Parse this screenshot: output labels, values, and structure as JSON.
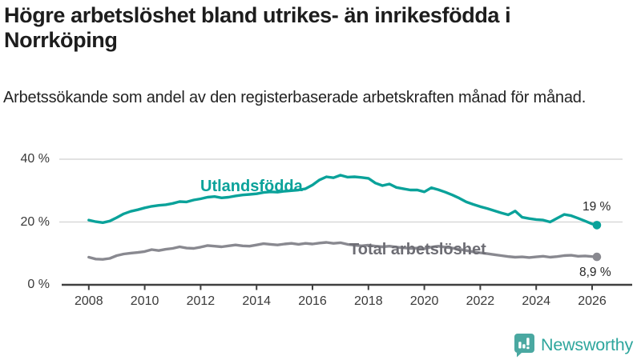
{
  "header": {
    "title": "Högre arbetslöshet bland utrikes- än inrikesfödda i Norrköping",
    "subtitle": "Arbetssökande som andel av den registerbaserade arbetskraften månad för månad."
  },
  "footer": {
    "brand": "Newsworthy"
  },
  "colors": {
    "accent_teal": "#0aa29a",
    "series_gray": "#898990",
    "series_label_gray": "#6d6d74",
    "logo_teal": "#2ea69d",
    "logo_icon_teal": "#4aa8a1",
    "text_dark": "#1d1d1d",
    "axis": "#3f3f3f",
    "grid": "#d8d8d8",
    "value_label": "#262626"
  },
  "chart_data": {
    "type": "line",
    "title": "Högre arbetslöshet bland utrikes- än inrikesfödda i Norrköping",
    "subtitle": "Arbetssökande som andel av den registerbaserade arbetskraften månad för månad.",
    "unit": "%",
    "ylim": [
      0,
      40
    ],
    "grid": "horizontal-only",
    "legend_position": "inline-labels",
    "xticks": [
      2008,
      2010,
      2012,
      2014,
      2016,
      2018,
      2020,
      2022,
      2024,
      2026
    ],
    "yticks": [
      {
        "value": 0,
        "label": "0 %"
      },
      {
        "value": 20,
        "label": "20 %"
      },
      {
        "value": 40,
        "label": "40 %"
      }
    ],
    "x": [
      2008,
      2008.25,
      2008.5,
      2008.75,
      2009,
      2009.25,
      2009.5,
      2009.75,
      2010,
      2010.25,
      2010.5,
      2010.75,
      2011,
      2011.25,
      2011.5,
      2011.75,
      2012,
      2012.25,
      2012.5,
      2012.75,
      2013,
      2013.25,
      2013.5,
      2013.75,
      2014,
      2014.25,
      2014.5,
      2014.75,
      2015,
      2015.25,
      2015.5,
      2015.75,
      2016,
      2016.25,
      2016.5,
      2016.75,
      2017,
      2017.25,
      2017.5,
      2017.75,
      2018,
      2018.25,
      2018.5,
      2018.75,
      2019,
      2019.25,
      2019.5,
      2019.75,
      2020,
      2020.25,
      2020.5,
      2020.75,
      2021,
      2021.25,
      2021.5,
      2021.75,
      2022,
      2022.25,
      2022.5,
      2022.75,
      2023,
      2023.25,
      2023.5,
      2023.75,
      2024,
      2024.25,
      2024.5,
      2024.75,
      2025,
      2025.25,
      2025.5,
      2025.75,
      2026,
      2026.17
    ],
    "series": [
      {
        "name": "Utlandsfödda",
        "color": "#0aa29a",
        "end_label": "19 %",
        "end_value": 19,
        "values": [
          20.6,
          20.1,
          19.8,
          20.3,
          21.4,
          22.6,
          23.4,
          23.9,
          24.5,
          25,
          25.3,
          25.5,
          25.9,
          26.5,
          26.4,
          27,
          27.4,
          27.9,
          28.1,
          27.7,
          27.9,
          28.3,
          28.6,
          28.8,
          29,
          29.4,
          29.6,
          29.5,
          29.8,
          30,
          30.2,
          30.6,
          31.8,
          33.4,
          34.4,
          34.1,
          34.9,
          34.3,
          34.4,
          34.2,
          33.9,
          32.4,
          31.6,
          32.1,
          31,
          30.6,
          30.2,
          30.2,
          29.6,
          30.9,
          30.3,
          29.5,
          28.6,
          27.6,
          26.4,
          25.6,
          24.9,
          24.3,
          23.6,
          22.9,
          22.3,
          23.5,
          21.5,
          21.1,
          20.8,
          20.6,
          20,
          21.2,
          22.4,
          22,
          21.2,
          20.3,
          19.4,
          19
        ]
      },
      {
        "name": "Total arbetslöshet",
        "color": "#898990",
        "end_label": "8,9 %",
        "end_value": 8.9,
        "values": [
          8.8,
          8.2,
          8.1,
          8.4,
          9.3,
          9.8,
          10.1,
          10.3,
          10.6,
          11.2,
          10.9,
          11.3,
          11.6,
          12.1,
          11.7,
          11.6,
          12,
          12.5,
          12.3,
          12.1,
          12.4,
          12.7,
          12.4,
          12.3,
          12.7,
          13.1,
          12.9,
          12.7,
          13,
          13.2,
          12.9,
          13.2,
          13,
          13.3,
          13.5,
          13.2,
          13.4,
          12.9,
          12.6,
          12.4,
          12.6,
          12.3,
          12.1,
          12.3,
          12,
          11.8,
          11.6,
          11.7,
          11.5,
          12,
          12.3,
          12,
          11.7,
          11.3,
          10.9,
          10.5,
          10.2,
          9.9,
          9.6,
          9.3,
          9,
          8.8,
          8.9,
          8.7,
          8.9,
          9.1,
          8.8,
          9,
          9.3,
          9.4,
          9.1,
          9.2,
          9,
          8.9
        ]
      }
    ]
  }
}
